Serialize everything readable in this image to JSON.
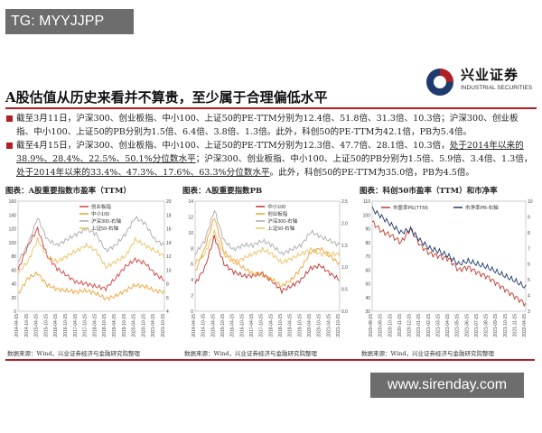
{
  "watermark_top": "TG: MYYJJPP",
  "watermark_bottom": "www.sirenday.com",
  "logo": {
    "name": "兴业证券",
    "sub": "INDUSTRIAL SECURITIES"
  },
  "title": "A股估值从历史来看并不算贵，至少属于合理偏低水平",
  "bullets": [
    {
      "text": "截至3月11日，沪深300、创业板指、中小100、上证50的PE-TTM分别为12.4倍、51.8倍、31.3倍、10.3倍；沪深300、创业板指、中小100、上证50的PB分别为1.5倍、6.4倍、3.8倍、1.3倍。此外，科创50的PE-TTM为42.1倍，PB为5.4倍。"
    },
    {
      "text_a": "截至4月15日，沪深300、创业板指、中小100、上证50的PE-TTM分别为12.3倍、47.7倍、28.1倍、10.3倍，",
      "text_b": "处于2014年以来的38.9%、28.4%、22.5%、50.1%分位数水平",
      "text_c": "；沪深300、创业板指、中小100、上证50的PB分别为1.5倍、5.9倍、3.4倍、1.3倍，",
      "text_d": "处于2014年以来的33.4%、47.3%、17.6%、63.3%分位数水平",
      "text_e": "。此外，科创50的PE-TTM为35.0倍，PB为4.5倍。"
    }
  ],
  "chart_data": [
    {
      "type": "line",
      "title": "图表：A股重要指数市盈率（TTM）",
      "series": [
        {
          "name": "创业板指",
          "values": [
            60,
            95,
            120,
            80,
            62,
            52,
            42,
            40,
            36,
            33,
            48,
            65,
            75,
            70,
            55,
            45
          ]
        },
        {
          "name": "中小100",
          "values": [
            25,
            48,
            55,
            38,
            32,
            30,
            28,
            30,
            26,
            18,
            22,
            30,
            38,
            36,
            30,
            28
          ]
        },
        {
          "name": "沪深300-右轴",
          "values": [
            9,
            12,
            17,
            13,
            12,
            13,
            14,
            15,
            14,
            11,
            12,
            14,
            17,
            16,
            13,
            12
          ]
        },
        {
          "name": "上证50-右轴",
          "values": [
            7,
            9,
            13,
            10,
            9,
            10,
            11,
            12,
            11,
            8,
            9,
            10,
            13,
            12,
            11,
            10
          ]
        }
      ],
      "x": [
        "2014-04-15",
        "2014-10-15",
        "2015-04-15",
        "2015-10-15",
        "2016-04-15",
        "2016-10-15",
        "2017-04-15",
        "2017-10-15",
        "2018-04-15",
        "2018-10-15",
        "2019-04-15",
        "2019-10-15",
        "2020-04-15",
        "2020-10-15",
        "2021-04-15",
        "2021-10-15"
      ],
      "yleft": [
        0,
        160
      ],
      "yright": [
        0,
        20
      ],
      "left_ticks": [
        "160",
        "140",
        "120",
        "100",
        "80",
        "60",
        "40",
        "20",
        "0"
      ],
      "right_ticks": [
        "20",
        "18",
        "16",
        "14",
        "12",
        "10",
        "8",
        "6",
        "4"
      ]
    },
    {
      "type": "line",
      "title": "图表：A股重要指数PB",
      "series": [
        {
          "name": "中小100",
          "values": [
            3.5,
            5.5,
            9.5,
            6.0,
            5.0,
            4.5,
            4.5,
            4.8,
            3.8,
            2.6,
            3.2,
            4.0,
            5.5,
            5.8,
            4.8,
            4.0
          ]
        },
        {
          "name": "创业板指",
          "values": [
            5,
            8,
            12,
            7.5,
            6.5,
            5.5,
            4.8,
            4.6,
            4.0,
            3.2,
            4.0,
            5.5,
            7.5,
            8.0,
            7.0,
            6.0
          ]
        },
        {
          "name": "沪深300-右轴",
          "values": [
            1.3,
            1.6,
            2.3,
            1.6,
            1.4,
            1.5,
            1.5,
            1.6,
            1.5,
            1.3,
            1.4,
            1.5,
            1.8,
            1.7,
            1.6,
            1.5
          ]
        },
        {
          "name": "上证50-右轴",
          "values": [
            1.1,
            1.3,
            1.8,
            1.3,
            1.1,
            1.2,
            1.3,
            1.4,
            1.3,
            1.1,
            1.2,
            1.3,
            1.4,
            1.3,
            1.3,
            1.3
          ]
        }
      ],
      "x": [
        "2014-04-15",
        "2014-10-15",
        "2015-04-15",
        "2015-10-15",
        "2016-04-15",
        "2016-10-15",
        "2017-04-15",
        "2017-10-15",
        "2018-04-15",
        "2018-10-15",
        "2019-04-15",
        "2019-10-15",
        "2020-04-15",
        "2020-10-15",
        "2021-04-15",
        "2021-10-15"
      ],
      "yleft": [
        0,
        14
      ],
      "yright": [
        0,
        2.5
      ],
      "left_ticks": [
        "14",
        "12",
        "10",
        "8",
        "6",
        "4",
        "2",
        "0"
      ],
      "right_ticks": [
        "2.5",
        "2.0",
        "1.5",
        "1.0",
        "0.5",
        "0.0"
      ]
    },
    {
      "type": "line",
      "title": "图表：科创50市盈率（TTM）和市净率",
      "series": [
        {
          "name": "市盈率PE(TTM)",
          "values": [
            95,
            88,
            85,
            80,
            90,
            78,
            72,
            70,
            68,
            60,
            62,
            58,
            55,
            50,
            45,
            40,
            35
          ]
        },
        {
          "name": "市净率PB-右轴",
          "values": [
            9.5,
            9.0,
            8.5,
            8.0,
            8.2,
            7.5,
            7.0,
            6.8,
            6.5,
            6.0,
            6.2,
            6.0,
            5.8,
            5.5,
            5.2,
            4.9,
            4.5
          ]
        }
      ],
      "x": [
        "2020-08-15",
        "2020-09-15",
        "2020-10-15",
        "2020-11-15",
        "2020-12-15",
        "2021-01-15",
        "2021-02-15",
        "2021-03-15",
        "2021-04-15",
        "2021-05-15",
        "2021-06-15",
        "2021-07-15",
        "2021-08-15",
        "2021-09-15",
        "2021-10-15",
        "2021-11-15",
        "2022-04-15"
      ],
      "yleft": [
        30,
        110
      ],
      "yright": [
        3,
        10
      ],
      "left_ticks": [
        "110",
        "100",
        "90",
        "80",
        "70",
        "60",
        "50",
        "40",
        "30"
      ],
      "right_ticks": [
        "10",
        "9",
        "8",
        "7",
        "6",
        "5",
        "4",
        "3"
      ],
      "colors": [
        "#c0392b",
        "#1f3a6e"
      ]
    }
  ],
  "sources": [
    "数据来源：Wind，兴业证券经济与金融研究院整理",
    "数据来源：Wind，兴业证券经济与金融研究院整理",
    "数据来源：Wind，兴业证券经济与金融研究院整理"
  ],
  "colors": {
    "accent": "#b01f24",
    "line_red": "#d04040",
    "line_gray": "#aaaaaa",
    "line_orange": "#f0a030",
    "line_blue": "#1f3a6e"
  }
}
